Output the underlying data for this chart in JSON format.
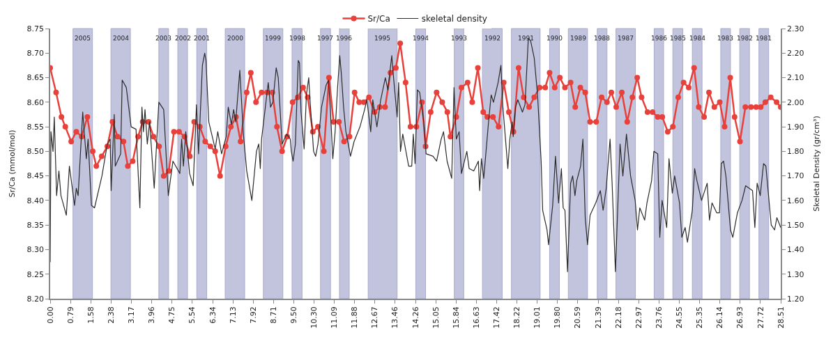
{
  "chart_data": {
    "type": "line",
    "ylabel": "Sr/Ca (mmol/mol)",
    "y2label": "Skeletal Density (gr/cm³)",
    "xlim": [
      0,
      28.51
    ],
    "xticks": [
      {
        "value": 0,
        "label": "0.00"
      },
      0.79,
      1.58,
      2.38,
      3.17,
      3.96,
      4.75,
      5.54,
      6.34,
      7.13,
      7.92,
      8.71,
      {
        "value": 9.5,
        "label": "9.50"
      },
      {
        "value": 10.3,
        "label": "10.30"
      },
      11.09,
      11.88,
      12.67,
      13.46,
      14.26,
      15.05,
      15.84,
      16.63,
      17.42,
      18.22,
      19.01,
      {
        "value": 19.8,
        "label": "19.80"
      },
      20.59,
      21.39,
      22.18,
      22.97,
      23.76,
      24.55,
      25.35,
      26.14,
      26.93,
      27.72,
      28.51
    ],
    "ylim": [
      8.2,
      8.75
    ],
    "yticks": [
      {
        "value": 8.2,
        "label": "8.20"
      },
      8.25,
      {
        "value": 8.3,
        "label": "8.30"
      },
      8.35,
      {
        "value": 8.4,
        "label": "8.40"
      },
      8.45,
      {
        "value": 8.5,
        "label": "8.50"
      },
      8.55,
      {
        "value": 8.6,
        "label": "8.60"
      },
      8.65,
      {
        "value": 8.7,
        "label": "8.70"
      },
      8.75
    ],
    "y2lim": [
      1.2,
      2.3
    ],
    "y2ticks": [
      {
        "value": 1.2,
        "label": "1.20"
      },
      {
        "value": 1.3,
        "label": "1.30"
      },
      {
        "value": 1.4,
        "label": "1.40"
      },
      {
        "value": 1.5,
        "label": "1.50"
      },
      {
        "value": 1.6,
        "label": "1.60"
      },
      {
        "value": 1.7,
        "label": "1.70"
      },
      {
        "value": 1.8,
        "label": "1.80"
      },
      {
        "value": 1.9,
        "label": "1.90"
      },
      {
        "value": 2.0,
        "label": "2.00"
      },
      {
        "value": 2.1,
        "label": "2.10"
      },
      {
        "value": 2.2,
        "label": "2.20"
      },
      {
        "value": 2.3,
        "label": "2.30"
      }
    ],
    "grid": false,
    "legend": "top",
    "bands": [
      {
        "axis": "x",
        "from": 0.89,
        "to": 1.65,
        "label": "2005",
        "color": "#b8bad9"
      },
      {
        "axis": "x",
        "from": 2.37,
        "to": 3.13,
        "label": "2004",
        "color": "#b8bad9"
      },
      {
        "axis": "x",
        "from": 4.24,
        "to": 4.62,
        "label": "2003",
        "color": "#b8bad9"
      },
      {
        "axis": "x",
        "from": 4.98,
        "to": 5.36,
        "label": "2002",
        "color": "#b8bad9"
      },
      {
        "axis": "x",
        "from": 5.72,
        "to": 6.11,
        "label": "2001",
        "color": "#b8bad9"
      },
      {
        "axis": "x",
        "from": 6.83,
        "to": 7.59,
        "label": "2000",
        "color": "#b8bad9"
      },
      {
        "axis": "x",
        "from": 8.32,
        "to": 9.08,
        "label": "1999",
        "color": "#b8bad9"
      },
      {
        "axis": "x",
        "from": 9.44,
        "to": 9.83,
        "label": "1998",
        "color": "#b8bad9"
      },
      {
        "axis": "x",
        "from": 10.55,
        "to": 10.94,
        "label": "1997",
        "color": "#b8bad9"
      },
      {
        "axis": "x",
        "from": 11.29,
        "to": 11.67,
        "label": "1996",
        "color": "#b8bad9"
      },
      {
        "axis": "x",
        "from": 12.41,
        "to": 13.54,
        "label": "1995",
        "color": "#b8bad9"
      },
      {
        "axis": "x",
        "from": 14.27,
        "to": 14.65,
        "label": "1994",
        "color": "#b8bad9"
      },
      {
        "axis": "x",
        "from": 15.77,
        "to": 16.14,
        "label": "1993",
        "color": "#b8bad9"
      },
      {
        "axis": "x",
        "from": 16.87,
        "to": 17.64,
        "label": "1992",
        "color": "#b8bad9"
      },
      {
        "axis": "x",
        "from": 18.0,
        "to": 19.12,
        "label": "1991",
        "color": "#b8bad9"
      },
      {
        "axis": "x",
        "from": 19.49,
        "to": 19.87,
        "label": "1990",
        "color": "#b8bad9"
      },
      {
        "axis": "x",
        "from": 20.22,
        "to": 20.97,
        "label": "1989",
        "color": "#b8bad9"
      },
      {
        "axis": "x",
        "from": 21.35,
        "to": 21.73,
        "label": "1988",
        "color": "#b8bad9"
      },
      {
        "axis": "x",
        "from": 22.08,
        "to": 22.84,
        "label": "1987",
        "color": "#b8bad9"
      },
      {
        "axis": "x",
        "from": 23.57,
        "to": 23.94,
        "label": "1986",
        "color": "#b8bad9"
      },
      {
        "axis": "x",
        "from": 24.3,
        "to": 24.69,
        "label": "1985",
        "color": "#b8bad9"
      },
      {
        "axis": "x",
        "from": 25.06,
        "to": 25.44,
        "label": "1984",
        "color": "#b8bad9"
      },
      {
        "axis": "x",
        "from": 26.17,
        "to": 26.55,
        "label": "1983",
        "color": "#b8bad9"
      },
      {
        "axis": "x",
        "from": 26.91,
        "to": 27.29,
        "label": "1982",
        "color": "#b8bad9"
      },
      {
        "axis": "x",
        "from": 27.66,
        "to": 28.04,
        "label": "1981",
        "color": "#b8bad9"
      }
    ],
    "series": [
      {
        "name": "Sr/Ca",
        "color": "#e8403a",
        "marker": "circle",
        "line_style": "solid",
        "x": [
          0.0,
          0.23,
          0.44,
          0.59,
          0.82,
          1.02,
          1.23,
          1.45,
          1.66,
          1.8,
          2.01,
          2.23,
          2.43,
          2.63,
          2.86,
          3.03,
          3.22,
          3.43,
          3.61,
          3.84,
          4.03,
          4.25,
          4.43,
          4.63,
          4.83,
          5.03,
          5.24,
          5.45,
          5.62,
          5.84,
          6.05,
          6.25,
          6.44,
          6.63,
          6.85,
          7.05,
          7.25,
          7.43,
          7.67,
          7.83,
          8.03,
          8.25,
          8.47,
          8.67,
          8.85,
          9.05,
          9.25,
          9.46,
          9.66,
          9.87,
          10.05,
          10.25,
          10.45,
          10.68,
          10.88,
          11.06,
          11.27,
          11.47,
          11.68,
          11.88,
          12.06,
          12.24,
          12.44,
          12.66,
          12.86,
          13.07,
          13.28,
          13.49,
          13.66,
          13.87,
          14.06,
          14.29,
          14.51,
          14.65,
          14.85,
          15.08,
          15.3,
          15.5,
          15.62,
          15.85,
          16.05,
          16.29,
          16.47,
          16.69,
          16.9,
          17.06,
          17.28,
          17.5,
          17.7,
          17.9,
          18.08,
          18.28,
          18.48,
          18.69,
          18.89,
          19.1,
          19.32,
          19.49,
          19.69,
          19.89,
          20.09,
          20.31,
          20.49,
          20.69,
          20.88,
          21.07,
          21.31,
          21.52,
          21.73,
          21.9,
          22.09,
          22.31,
          22.52,
          22.72,
          22.91,
          23.08,
          23.31,
          23.51,
          23.71,
          23.89,
          24.1,
          24.3,
          24.51,
          24.72,
          24.92,
          25.13,
          25.31,
          25.52,
          25.71,
          25.92,
          26.13,
          26.32,
          26.54,
          26.71,
          26.92,
          27.13,
          27.35,
          27.55,
          27.73,
          27.91,
          28.12,
          28.35,
          28.51
        ],
        "values": [
          8.67,
          8.62,
          8.57,
          8.55,
          8.52,
          8.54,
          8.53,
          8.57,
          8.5,
          8.47,
          8.49,
          8.51,
          8.56,
          8.53,
          8.52,
          8.47,
          8.48,
          8.53,
          8.56,
          8.56,
          8.53,
          8.51,
          8.45,
          8.46,
          8.54,
          8.54,
          8.53,
          8.49,
          8.56,
          8.55,
          8.52,
          8.51,
          8.5,
          8.45,
          8.51,
          8.55,
          8.57,
          8.52,
          8.62,
          8.66,
          8.6,
          8.62,
          8.62,
          8.62,
          8.55,
          8.5,
          8.53,
          8.6,
          8.61,
          8.63,
          8.61,
          8.54,
          8.55,
          8.5,
          8.65,
          8.56,
          8.56,
          8.52,
          8.53,
          8.62,
          8.6,
          8.6,
          8.61,
          8.58,
          8.59,
          8.59,
          8.66,
          8.67,
          8.72,
          8.64,
          8.55,
          8.55,
          8.6,
          8.51,
          8.58,
          8.62,
          8.6,
          8.58,
          8.53,
          8.57,
          8.63,
          8.64,
          8.6,
          8.67,
          8.58,
          8.57,
          8.57,
          8.55,
          8.64,
          8.58,
          8.54,
          8.67,
          8.61,
          8.59,
          8.61,
          8.63,
          8.63,
          8.66,
          8.63,
          8.65,
          8.63,
          8.64,
          8.59,
          8.63,
          8.62,
          8.56,
          8.56,
          8.61,
          8.6,
          8.62,
          8.59,
          8.62,
          8.56,
          8.61,
          8.65,
          8.61,
          8.58,
          8.58,
          8.57,
          8.57,
          8.54,
          8.55,
          8.61,
          8.64,
          8.63,
          8.67,
          8.59,
          8.57,
          8.62,
          8.59,
          8.6,
          8.55,
          8.65,
          8.57,
          8.52,
          8.59,
          8.59,
          8.59,
          8.59,
          8.6,
          8.61,
          8.6,
          8.59
        ]
      },
      {
        "name": "skeletal density",
        "color": "#2b2b2b",
        "axis": "y2",
        "marker": "none",
        "line_style": "solid",
        "x": [
          0.0,
          0.03,
          0.11,
          0.16,
          0.25,
          0.34,
          0.42,
          0.63,
          0.75,
          0.95,
          1.02,
          1.09,
          1.27,
          1.41,
          1.48,
          1.61,
          1.73,
          2.02,
          2.23,
          2.34,
          2.38,
          2.5,
          2.54,
          2.75,
          2.81,
          2.97,
          3.16,
          3.35,
          3.5,
          3.58,
          3.64,
          3.7,
          3.79,
          3.88,
          4.06,
          4.24,
          4.43,
          4.61,
          4.79,
          5.06,
          5.13,
          5.2,
          5.29,
          5.44,
          5.58,
          5.71,
          5.79,
          5.94,
          6.03,
          6.08,
          6.19,
          6.44,
          6.54,
          6.69,
          6.87,
          6.95,
          7.07,
          7.16,
          7.24,
          7.4,
          7.54,
          7.67,
          7.87,
          8.05,
          8.14,
          8.2,
          8.25,
          8.51,
          8.6,
          8.69,
          8.82,
          8.9,
          9.05,
          9.23,
          9.37,
          9.41,
          9.48,
          9.57,
          9.68,
          9.73,
          9.79,
          9.91,
          10.0,
          10.09,
          10.14,
          10.28,
          10.36,
          10.45,
          10.59,
          10.77,
          10.86,
          10.94,
          11.03,
          11.12,
          11.21,
          11.3,
          11.36,
          11.45,
          11.54,
          11.72,
          11.86,
          12.09,
          12.27,
          12.36,
          12.51,
          12.59,
          12.75,
          12.9,
          13.08,
          13.18,
          13.33,
          13.4,
          13.54,
          13.6,
          13.67,
          13.76,
          13.99,
          14.11,
          14.17,
          14.24,
          14.33,
          14.42,
          14.58,
          14.67,
          14.94,
          15.08,
          15.26,
          15.35,
          15.49,
          15.67,
          15.76,
          15.85,
          15.96,
          16.05,
          16.26,
          16.35,
          16.53,
          16.71,
          16.76,
          16.83,
          16.92,
          17.1,
          17.21,
          17.3,
          17.48,
          17.59,
          17.66,
          17.8,
          17.86,
          17.94,
          18.03,
          18.07,
          18.16,
          18.25,
          18.43,
          18.53,
          18.66,
          18.75,
          18.89,
          19.02,
          19.16,
          19.22,
          19.39,
          19.45,
          19.61,
          19.72,
          19.84,
          19.95,
          20.02,
          20.09,
          20.19,
          20.31,
          20.39,
          20.48,
          20.55,
          20.7,
          20.79,
          20.88,
          20.97,
          21.07,
          21.29,
          21.47,
          21.58,
          21.7,
          21.85,
          21.93,
          22.06,
          22.15,
          22.24,
          22.35,
          22.49,
          22.65,
          22.83,
          22.92,
          23.01,
          23.2,
          23.29,
          23.47,
          23.56,
          23.71,
          23.79,
          23.88,
          24.06,
          24.15,
          24.28,
          24.37,
          24.56,
          24.65,
          24.78,
          24.87,
          25.06,
          25.15,
          25.24,
          25.42,
          25.64,
          25.73,
          25.83,
          26.01,
          26.12,
          26.19,
          26.28,
          26.37,
          26.55,
          26.64,
          26.82,
          27.0,
          27.14,
          27.41,
          27.5,
          27.59,
          27.71,
          27.84,
          27.93,
          28.14,
          28.27,
          28.36,
          28.51
        ],
        "values": [
          1.35,
          1.88,
          1.8,
          1.94,
          1.62,
          1.72,
          1.62,
          1.54,
          1.74,
          1.58,
          1.65,
          1.62,
          1.96,
          1.77,
          1.85,
          1.58,
          1.57,
          1.7,
          1.83,
          1.85,
          1.64,
          1.95,
          1.74,
          1.79,
          2.09,
          2.06,
          1.9,
          1.89,
          1.57,
          1.98,
          1.88,
          1.97,
          1.83,
          1.92,
          1.65,
          2.0,
          1.97,
          1.62,
          1.76,
          1.71,
          1.85,
          1.74,
          1.88,
          1.71,
          1.66,
          1.99,
          1.79,
          2.15,
          2.2,
          2.17,
          1.92,
          1.81,
          1.88,
          1.79,
          1.86,
          1.98,
          1.91,
          1.97,
          1.92,
          2.13,
          1.87,
          1.72,
          1.6,
          1.8,
          1.83,
          1.73,
          1.85,
          2.08,
          1.98,
          2.0,
          2.14,
          2.1,
          1.83,
          1.87,
          1.85,
          1.8,
          1.76,
          1.83,
          2.17,
          2.16,
          1.96,
          1.81,
          2.03,
          2.1,
          2.01,
          1.8,
          1.78,
          1.83,
          1.98,
          2.07,
          2.09,
          1.96,
          1.77,
          1.88,
          2.05,
          2.19,
          2.12,
          1.98,
          1.88,
          1.78,
          1.84,
          1.9,
          1.97,
          2.01,
          1.88,
          2.01,
          1.9,
          2.01,
          2.1,
          2.05,
          2.19,
          2.1,
          1.94,
          2.08,
          1.8,
          1.87,
          1.74,
          1.74,
          1.87,
          1.75,
          2.05,
          2.04,
          1.92,
          1.79,
          1.78,
          1.76,
          1.85,
          1.88,
          1.76,
          1.69,
          2.06,
          1.85,
          1.88,
          1.71,
          1.8,
          1.73,
          1.72,
          1.76,
          1.64,
          1.77,
          1.69,
          1.91,
          2.03,
          2.0,
          2.08,
          2.15,
          1.99,
          1.81,
          1.73,
          1.85,
          1.92,
          1.86,
          1.98,
          2.01,
          1.96,
          1.99,
          2.26,
          2.25,
          2.18,
          2.03,
          1.76,
          1.56,
          1.48,
          1.42,
          1.58,
          1.78,
          1.59,
          1.73,
          1.57,
          1.56,
          1.31,
          1.67,
          1.7,
          1.62,
          1.68,
          1.74,
          1.85,
          1.53,
          1.42,
          1.54,
          1.59,
          1.64,
          1.56,
          1.65,
          1.85,
          1.67,
          1.31,
          1.57,
          1.83,
          1.7,
          1.87,
          1.7,
          1.6,
          1.48,
          1.57,
          1.52,
          1.59,
          1.68,
          1.8,
          1.79,
          1.45,
          1.6,
          1.49,
          1.77,
          1.63,
          1.7,
          1.59,
          1.45,
          1.49,
          1.43,
          1.56,
          1.73,
          1.68,
          1.6,
          1.67,
          1.52,
          1.59,
          1.55,
          1.55,
          1.75,
          1.76,
          1.7,
          1.48,
          1.45,
          1.55,
          1.6,
          1.66,
          1.64,
          1.49,
          1.67,
          1.62,
          1.75,
          1.74,
          1.5,
          1.48,
          1.53,
          1.49
        ]
      }
    ]
  }
}
